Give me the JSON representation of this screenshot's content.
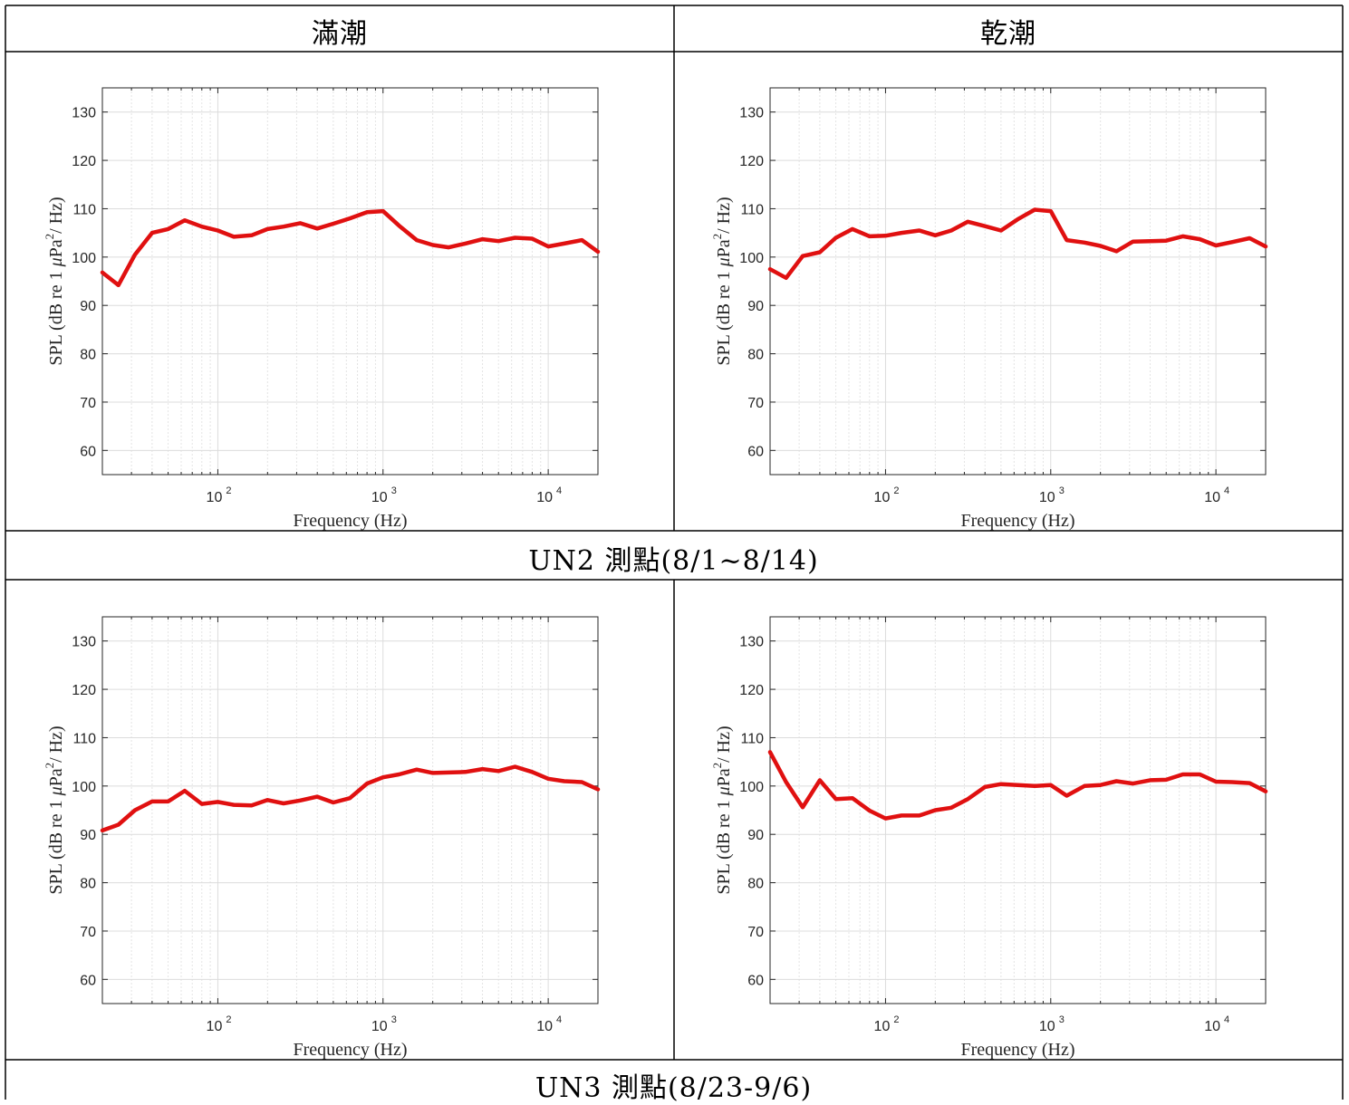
{
  "headers": {
    "left": "滿潮",
    "right": "乾潮"
  },
  "captions": {
    "un2": "UN2 測點(8/1~8/14)",
    "un3": "UN3 測點(8/23-9/6)"
  },
  "line_color": "#e01010",
  "chart_data": [
    {
      "id": "un2-high",
      "type": "line",
      "xlabel": "Frequency (Hz)",
      "ylabel_parts": [
        "SPL (dB re 1 ",
        "μ",
        "Pa",
        "2",
        "/ Hz)"
      ],
      "xscale": "log",
      "xlim": [
        20,
        20000
      ],
      "ylim": [
        55,
        135
      ],
      "yticks": [
        60,
        70,
        80,
        90,
        100,
        110,
        120,
        130
      ],
      "xtick_labels": [
        {
          "base": "10",
          "exp": "2",
          "value": 100
        },
        {
          "base": "10",
          "exp": "3",
          "value": 1000
        },
        {
          "base": "10",
          "exp": "4",
          "value": 10000
        }
      ],
      "grid": true,
      "x": [
        20,
        25,
        31.5,
        40,
        50,
        63,
        80,
        100,
        125,
        160,
        200,
        250,
        315,
        400,
        500,
        630,
        800,
        1000,
        1250,
        1600,
        2000,
        2500,
        3150,
        4000,
        5000,
        6300,
        8000,
        10000,
        12500,
        16000,
        20000
      ],
      "y": [
        96.8,
        94.2,
        100.5,
        105.0,
        105.8,
        107.6,
        106.3,
        105.5,
        104.2,
        104.5,
        105.8,
        106.3,
        107.0,
        105.9,
        106.9,
        108.0,
        109.3,
        109.5,
        106.5,
        103.5,
        102.5,
        102.0,
        102.8,
        103.7,
        103.3,
        104.0,
        103.8,
        102.2,
        102.8,
        103.5,
        101.1
      ]
    },
    {
      "id": "un2-low",
      "type": "line",
      "xlabel": "Frequency (Hz)",
      "ylabel_parts": [
        "SPL (dB re 1 ",
        "μ",
        "Pa",
        "2",
        "/ Hz)"
      ],
      "xscale": "log",
      "xlim": [
        20,
        20000
      ],
      "ylim": [
        55,
        135
      ],
      "yticks": [
        60,
        70,
        80,
        90,
        100,
        110,
        120,
        130
      ],
      "xtick_labels": [
        {
          "base": "10",
          "exp": "2",
          "value": 100
        },
        {
          "base": "10",
          "exp": "3",
          "value": 1000
        },
        {
          "base": "10",
          "exp": "4",
          "value": 10000
        }
      ],
      "grid": true,
      "x": [
        20,
        25,
        31.5,
        40,
        50,
        63,
        80,
        100,
        125,
        160,
        200,
        250,
        315,
        400,
        500,
        630,
        800,
        1000,
        1250,
        1600,
        2000,
        2500,
        3150,
        4000,
        5000,
        6300,
        8000,
        10000,
        12500,
        16000,
        20000
      ],
      "y": [
        97.5,
        95.7,
        100.2,
        101.0,
        104.0,
        105.8,
        104.3,
        104.4,
        105.0,
        105.5,
        104.5,
        105.5,
        107.3,
        106.4,
        105.5,
        107.8,
        109.8,
        109.5,
        103.5,
        103.0,
        102.3,
        101.2,
        103.2,
        103.3,
        103.4,
        104.3,
        103.7,
        102.4,
        103.1,
        103.9,
        102.2
      ]
    },
    {
      "id": "un3-high",
      "type": "line",
      "xlabel": "Frequency (Hz)",
      "ylabel_parts": [
        "SPL (dB re 1 ",
        "μ",
        "Pa",
        "2",
        "/ Hz)"
      ],
      "xscale": "log",
      "xlim": [
        20,
        20000
      ],
      "ylim": [
        55,
        135
      ],
      "yticks": [
        60,
        70,
        80,
        90,
        100,
        110,
        120,
        130
      ],
      "xtick_labels": [
        {
          "base": "10",
          "exp": "2",
          "value": 100
        },
        {
          "base": "10",
          "exp": "3",
          "value": 1000
        },
        {
          "base": "10",
          "exp": "4",
          "value": 10000
        }
      ],
      "grid": true,
      "x": [
        20,
        25,
        31.5,
        40,
        50,
        63,
        80,
        100,
        125,
        160,
        200,
        250,
        315,
        400,
        500,
        630,
        800,
        1000,
        1250,
        1600,
        2000,
        2500,
        3150,
        4000,
        5000,
        6300,
        8000,
        10000,
        12500,
        16000,
        20000
      ],
      "y": [
        90.8,
        92.0,
        95.0,
        96.8,
        96.8,
        99.0,
        96.3,
        96.7,
        96.1,
        96.0,
        97.1,
        96.4,
        97.0,
        97.8,
        96.6,
        97.5,
        100.5,
        101.8,
        102.4,
        103.4,
        102.7,
        102.8,
        102.9,
        103.5,
        103.1,
        104.0,
        102.9,
        101.5,
        101.0,
        100.8,
        99.3
      ]
    },
    {
      "id": "un3-low",
      "type": "line",
      "xlabel": "Frequency (Hz)",
      "ylabel_parts": [
        "SPL (dB re 1 ",
        "μ",
        "Pa",
        "2",
        "/ Hz)"
      ],
      "xscale": "log",
      "xlim": [
        20,
        20000
      ],
      "ylim": [
        55,
        135
      ],
      "yticks": [
        60,
        70,
        80,
        90,
        100,
        110,
        120,
        130
      ],
      "xtick_labels": [
        {
          "base": "10",
          "exp": "2",
          "value": 100
        },
        {
          "base": "10",
          "exp": "3",
          "value": 1000
        },
        {
          "base": "10",
          "exp": "4",
          "value": 10000
        }
      ],
      "grid": true,
      "x": [
        20,
        25,
        31.5,
        40,
        50,
        63,
        80,
        100,
        125,
        160,
        200,
        250,
        315,
        400,
        500,
        630,
        800,
        1000,
        1250,
        1600,
        2000,
        2500,
        3150,
        4000,
        5000,
        6300,
        8000,
        10000,
        12500,
        16000,
        20000
      ],
      "y": [
        107.0,
        100.8,
        95.6,
        101.2,
        97.3,
        97.5,
        94.9,
        93.3,
        93.9,
        93.9,
        95.0,
        95.5,
        97.3,
        99.8,
        100.4,
        100.2,
        100.0,
        100.2,
        98.0,
        100.0,
        100.2,
        101.0,
        100.5,
        101.2,
        101.3,
        102.4,
        102.4,
        100.9,
        100.8,
        100.6,
        98.9
      ]
    }
  ]
}
